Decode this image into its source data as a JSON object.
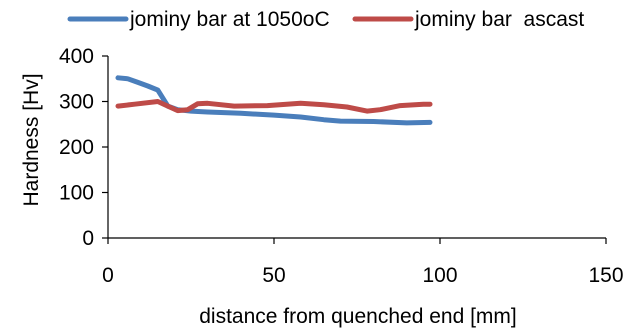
{
  "chart_data": {
    "type": "line",
    "title": "",
    "xlabel": "distance from quenched end [mm]",
    "ylabel": "Hardness [Hv]",
    "xlim": [
      0,
      150
    ],
    "ylim": [
      0,
      400
    ],
    "x_ticks": [
      0,
      50,
      100,
      150
    ],
    "y_ticks": [
      0,
      100,
      200,
      300,
      400
    ],
    "grid": false,
    "legend_position": "top",
    "series": [
      {
        "name": "jominy bar at 1050oC",
        "color": "#4a7ebb",
        "points": [
          [
            3,
            352
          ],
          [
            6,
            350
          ],
          [
            9,
            342
          ],
          [
            12,
            334
          ],
          [
            15,
            325
          ],
          [
            18,
            290
          ],
          [
            21,
            282
          ],
          [
            25,
            279
          ],
          [
            30,
            277
          ],
          [
            40,
            274
          ],
          [
            50,
            270
          ],
          [
            58,
            266
          ],
          [
            65,
            260
          ],
          [
            70,
            257
          ],
          [
            80,
            256
          ],
          [
            90,
            253
          ],
          [
            97,
            254
          ]
        ]
      },
      {
        "name": "jominy bar  ascast",
        "color": "#be4b48",
        "points": [
          [
            3,
            290
          ],
          [
            8,
            294
          ],
          [
            15,
            300
          ],
          [
            18,
            290
          ],
          [
            21,
            280
          ],
          [
            24,
            282
          ],
          [
            27,
            295
          ],
          [
            30,
            296
          ],
          [
            38,
            290
          ],
          [
            48,
            291
          ],
          [
            58,
            296
          ],
          [
            65,
            293
          ],
          [
            72,
            288
          ],
          [
            78,
            279
          ],
          [
            82,
            282
          ],
          [
            88,
            291
          ],
          [
            95,
            294
          ],
          [
            97,
            294
          ]
        ]
      }
    ]
  }
}
